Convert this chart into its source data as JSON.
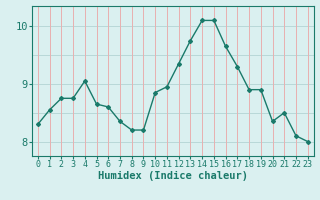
{
  "x": [
    0,
    1,
    2,
    3,
    4,
    5,
    6,
    7,
    8,
    9,
    10,
    11,
    12,
    13,
    14,
    15,
    16,
    17,
    18,
    19,
    20,
    21,
    22,
    23
  ],
  "y": [
    8.3,
    8.55,
    8.75,
    8.75,
    9.05,
    8.65,
    8.6,
    8.35,
    8.2,
    8.2,
    8.85,
    8.95,
    9.35,
    9.75,
    10.1,
    10.1,
    9.65,
    9.3,
    8.9,
    8.9,
    8.35,
    8.5,
    8.1,
    8.0
  ],
  "xlabel": "Humidex (Indice chaleur)",
  "ylim": [
    7.75,
    10.35
  ],
  "xlim": [
    -0.5,
    23.5
  ],
  "yticks": [
    8,
    9,
    10
  ],
  "xtick_labels": [
    "0",
    "1",
    "2",
    "3",
    "4",
    "5",
    "6",
    "7",
    "8",
    "9",
    "10",
    "11",
    "12",
    "13",
    "14",
    "15",
    "16",
    "17",
    "18",
    "19",
    "20",
    "21",
    "22",
    "23"
  ],
  "line_color": "#1a7a6a",
  "marker": "D",
  "marker_size": 2.0,
  "bg_color": "#daf0f0",
  "vgrid_color": "#e8b0b0",
  "hgrid_color": "#b8d8d8",
  "tick_color": "#1a7a6a",
  "tick_label_fontsize": 6.0,
  "xlabel_fontsize": 7.5,
  "ytick_fontsize": 7.5,
  "hgrid_y": [
    8.0,
    8.5,
    9.0,
    9.5,
    10.0
  ]
}
